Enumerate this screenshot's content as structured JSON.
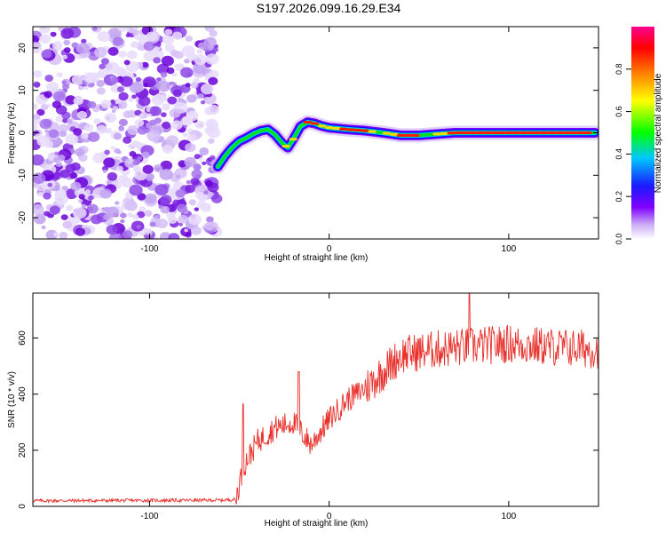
{
  "title": "S197.2026.099.16.29.E34",
  "chart_data": [
    {
      "type": "heatmap",
      "xlabel": "Height of straight line (km)",
      "ylabel": "Frequency (Hz)",
      "xlim": [
        -165,
        150
      ],
      "ylim": [
        -25,
        25
      ],
      "x_ticks": [
        -100,
        0,
        100
      ],
      "y_ticks": [
        -20,
        -10,
        0,
        10,
        20
      ],
      "noise_region_x": [
        -165,
        -62
      ],
      "signal_trace": {
        "x": [
          -62,
          -58,
          -54,
          -50,
          -46,
          -42,
          -38,
          -34,
          -30,
          -26,
          -23,
          -20,
          -16,
          -12,
          -8,
          -4,
          0,
          10,
          20,
          30,
          40,
          50,
          60,
          70,
          80,
          100,
          120,
          148
        ],
        "y": [
          -8,
          -5.5,
          -3.5,
          -2,
          -1.2,
          -0.2,
          0.5,
          0.8,
          -0.5,
          -2.5,
          -3.5,
          -1.5,
          1.5,
          2.5,
          2.2,
          1.6,
          1.2,
          0.8,
          0.5,
          0,
          -0.6,
          -0.6,
          -0.3,
          0,
          0,
          0,
          0,
          0
        ]
      },
      "colorbar": {
        "label": "Normalized spectral amplitude",
        "ticks": [
          0.0,
          0.2,
          0.4,
          0.6,
          0.8
        ],
        "tick_labels": [
          "0.0",
          "0.2",
          "0.4",
          "0.6",
          "0.8"
        ],
        "colors": [
          "#ffffff",
          "#8000ff",
          "#0000ff",
          "#00c8ff",
          "#00ff00",
          "#ffff00",
          "#ff8000",
          "#ff0000",
          "#ff0080"
        ]
      }
    },
    {
      "type": "line",
      "xlabel": "Height of straight line (km)",
      "ylabel": "SNR (10 * v/v)",
      "xlim": [
        -165,
        150
      ],
      "ylim": [
        0,
        760
      ],
      "x_ticks": [
        -100,
        0,
        100
      ],
      "y_ticks": [
        0,
        200,
        400,
        600
      ],
      "line_color": "#e8312c",
      "trend": {
        "x": [
          -165,
          -60,
          -52,
          -48,
          -40,
          -30,
          -20,
          -10,
          0,
          10,
          20,
          30,
          40,
          60,
          80,
          100,
          120,
          150
        ],
        "y": [
          20,
          22,
          25,
          140,
          230,
          280,
          300,
          220,
          310,
          380,
          420,
          480,
          540,
          560,
          570,
          580,
          570,
          560
        ]
      },
      "spikes": [
        {
          "x": -48,
          "y": 365
        },
        {
          "x": -17,
          "y": 480
        },
        {
          "x": 78,
          "y": 760
        }
      ]
    }
  ]
}
